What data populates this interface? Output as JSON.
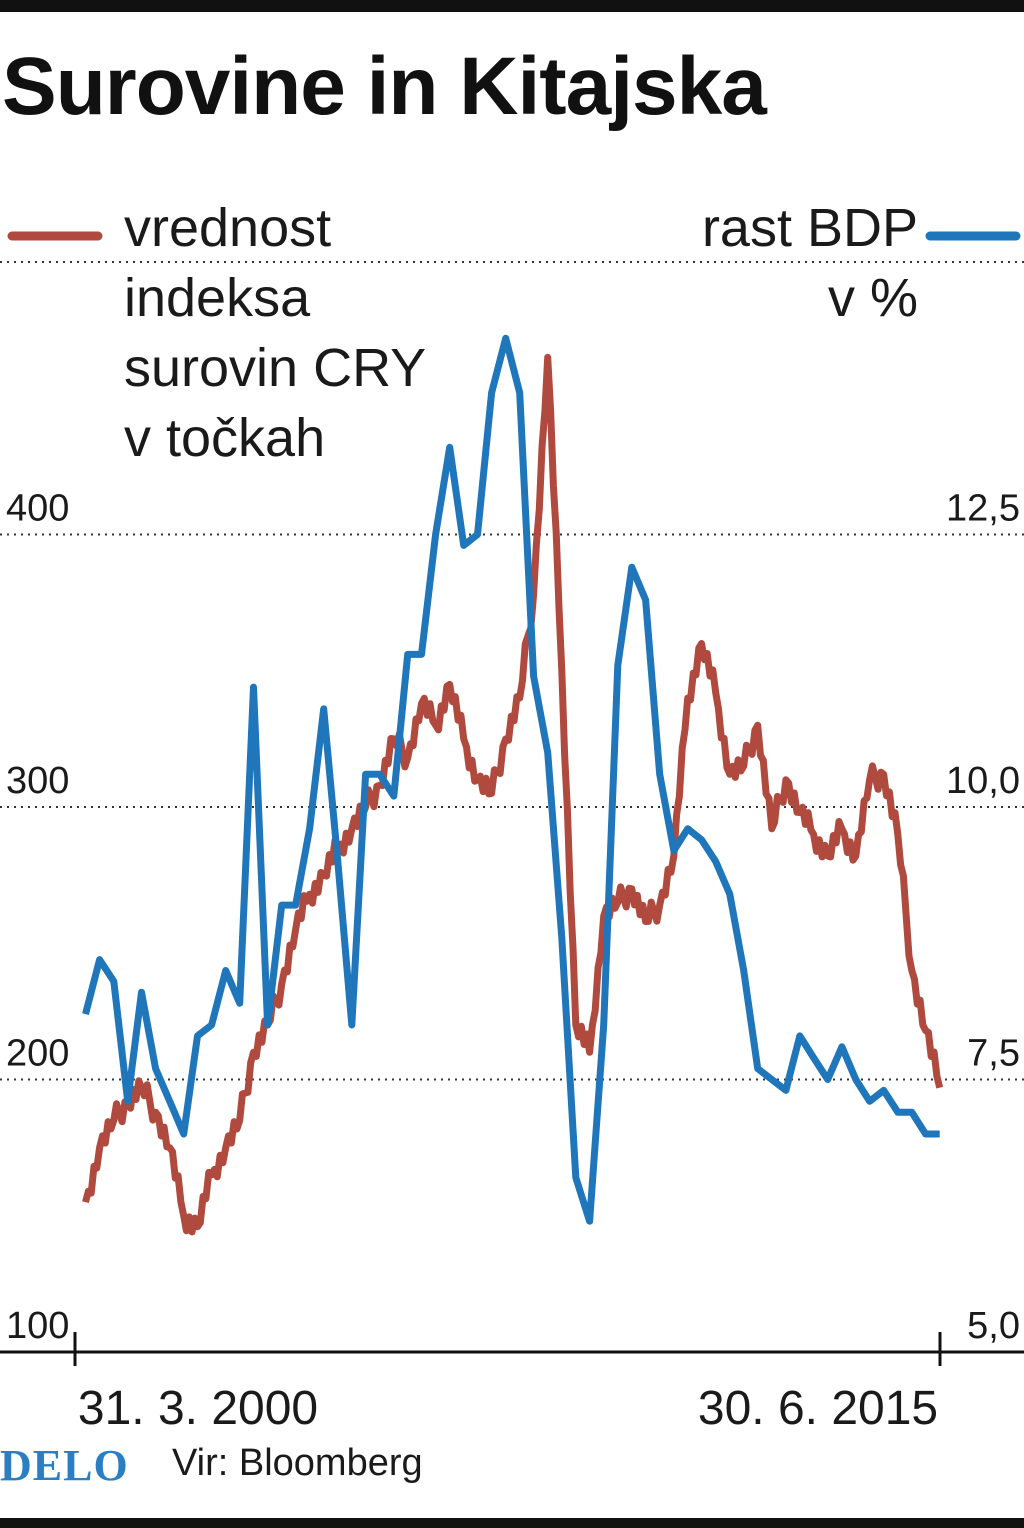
{
  "title": "Surovine in Kitajska",
  "legend": {
    "left_lines": [
      "vrednost",
      "indeksa",
      "surovin CRY",
      "v točkah"
    ],
    "right_lines": [
      "rast BDP",
      "v %"
    ]
  },
  "footer": {
    "logo": "DELO",
    "source": "Vir: Bloomberg"
  },
  "colors": {
    "cry": "#b04a3e",
    "gdp": "#1f76bb",
    "grid": "#333333",
    "logo": "#2a7fc4"
  },
  "chart_data": {
    "type": "line",
    "title": "Surovine in Kitajska",
    "x_tick_labels": [
      "31. 3. 2000",
      "30. 6. 2015"
    ],
    "x_range": [
      "2000-03-31",
      "2015-06-30"
    ],
    "left_axis": {
      "ticks": [
        "100",
        "200",
        "300",
        "400"
      ],
      "range": [
        100,
        500
      ]
    },
    "right_axis": {
      "ticks": [
        "5,0",
        "7,5",
        "10,0",
        "12,5"
      ],
      "range": [
        5.0,
        15.0
      ]
    },
    "grid": "dotted horizontal",
    "series": [
      {
        "name": "vrednost indeksa surovin CRY v točkah",
        "axis": "left",
        "x": [
          "2000-03",
          "2000-06",
          "2000-09",
          "2000-12",
          "2001-03",
          "2001-06",
          "2001-09",
          "2001-12",
          "2002-03",
          "2002-06",
          "2002-09",
          "2002-12",
          "2003-03",
          "2003-06",
          "2003-09",
          "2003-12",
          "2004-03",
          "2004-06",
          "2004-09",
          "2004-12",
          "2005-03",
          "2005-06",
          "2005-09",
          "2005-12",
          "2006-03",
          "2006-06",
          "2006-09",
          "2006-12",
          "2007-03",
          "2007-06",
          "2007-09",
          "2007-12",
          "2008-03",
          "2008-06",
          "2008-09",
          "2008-12",
          "2009-03",
          "2009-06",
          "2009-09",
          "2009-12",
          "2010-03",
          "2010-06",
          "2010-09",
          "2010-12",
          "2011-03",
          "2011-06",
          "2011-09",
          "2011-12",
          "2012-03",
          "2012-06",
          "2012-09",
          "2012-12",
          "2013-03",
          "2013-06",
          "2013-09",
          "2013-12",
          "2014-03",
          "2014-06",
          "2014-09",
          "2014-12",
          "2015-03",
          "2015-06"
        ],
        "values": [
          155,
          175,
          185,
          192,
          197,
          188,
          175,
          150,
          146,
          165,
          175,
          185,
          210,
          220,
          235,
          255,
          268,
          275,
          285,
          292,
          300,
          308,
          325,
          318,
          338,
          330,
          345,
          325,
          310,
          305,
          325,
          340,
          378,
          465,
          350,
          220,
          210,
          260,
          265,
          270,
          258,
          264,
          282,
          340,
          360,
          342,
          312,
          315,
          330,
          292,
          310,
          298,
          290,
          282,
          292,
          282,
          310,
          312,
          290,
          240,
          218,
          197
        ],
        "style": "jagged"
      },
      {
        "name": "rast BDP v %",
        "axis": "right",
        "x": [
          "2000-03",
          "2000-06",
          "2000-09",
          "2000-12",
          "2001-03",
          "2001-06",
          "2001-09",
          "2001-12",
          "2002-03",
          "2002-06",
          "2002-09",
          "2002-12",
          "2003-03",
          "2003-06",
          "2003-09",
          "2003-12",
          "2004-03",
          "2004-06",
          "2004-09",
          "2004-12",
          "2005-03",
          "2005-06",
          "2005-09",
          "2005-12",
          "2006-03",
          "2006-06",
          "2006-09",
          "2006-12",
          "2007-03",
          "2007-06",
          "2007-09",
          "2007-12",
          "2008-03",
          "2008-06",
          "2008-09",
          "2008-12",
          "2009-03",
          "2009-06",
          "2009-09",
          "2009-12",
          "2010-03",
          "2010-06",
          "2010-09",
          "2010-12",
          "2011-03",
          "2011-06",
          "2011-09",
          "2011-12",
          "2012-03",
          "2012-06",
          "2012-09",
          "2012-12",
          "2013-03",
          "2013-06",
          "2013-09",
          "2013-12",
          "2014-03",
          "2014-06",
          "2014-09",
          "2014-12",
          "2015-03",
          "2015-06"
        ],
        "values": [
          8.1,
          8.6,
          8.4,
          7.3,
          8.3,
          7.6,
          7.3,
          7.0,
          7.9,
          8.0,
          8.5,
          8.2,
          11.1,
          8.0,
          9.1,
          9.1,
          9.8,
          10.9,
          9.5,
          8.0,
          10.3,
          10.3,
          10.1,
          11.4,
          11.4,
          12.5,
          13.3,
          12.4,
          12.5,
          13.8,
          14.3,
          13.8,
          11.2,
          10.5,
          8.8,
          6.6,
          6.2,
          8.0,
          11.3,
          12.2,
          11.9,
          10.3,
          9.6,
          9.8,
          9.7,
          9.5,
          9.2,
          8.5,
          7.6,
          7.5,
          7.4,
          7.9,
          7.7,
          7.5,
          7.8,
          7.5,
          7.3,
          7.4,
          7.2,
          7.2,
          7.0,
          7.0
        ],
        "style": "smooth"
      }
    ]
  }
}
